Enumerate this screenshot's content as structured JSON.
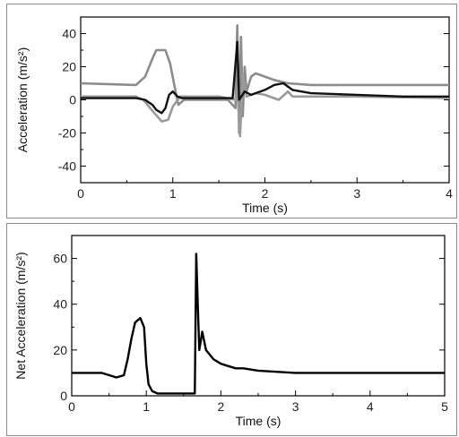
{
  "chart_data": [
    {
      "type": "line",
      "xlabel": "Time (s)",
      "ylabel": "Acceleration (m/s²)",
      "xlim": [
        0,
        4
      ],
      "ylim": [
        -50,
        50
      ],
      "x_ticks": [
        0,
        1,
        2,
        3,
        4
      ],
      "y_ticks": [
        40,
        20,
        0,
        -20,
        -40
      ],
      "grid": false,
      "series": [
        {
          "color": "#8c8c8c",
          "points": [
            [
              0,
              10
            ],
            [
              0.6,
              9
            ],
            [
              0.7,
              14
            ],
            [
              0.78,
              25
            ],
            [
              0.82,
              30
            ],
            [
              0.92,
              30
            ],
            [
              0.97,
              22
            ],
            [
              1.02,
              8
            ],
            [
              1.06,
              -3
            ],
            [
              1.12,
              0
            ],
            [
              1.3,
              0
            ],
            [
              1.6,
              0
            ],
            [
              1.68,
              -5
            ],
            [
              1.7,
              45
            ],
            [
              1.72,
              -20
            ],
            [
              1.74,
              38
            ],
            [
              1.76,
              -10
            ],
            [
              1.78,
              20
            ],
            [
              1.8,
              5
            ],
            [
              1.85,
              14
            ],
            [
              1.9,
              16
            ],
            [
              2.0,
              14
            ],
            [
              2.1,
              12
            ],
            [
              2.25,
              10
            ],
            [
              2.5,
              9
            ],
            [
              3.0,
              9
            ],
            [
              3.5,
              9
            ],
            [
              4.0,
              9
            ]
          ]
        },
        {
          "color": "#9a9a9a",
          "points": [
            [
              0,
              2
            ],
            [
              0.6,
              2
            ],
            [
              0.68,
              0
            ],
            [
              0.8,
              -8
            ],
            [
              0.88,
              -13
            ],
            [
              0.95,
              -12
            ],
            [
              1.0,
              -4
            ],
            [
              1.08,
              2
            ],
            [
              1.2,
              2
            ],
            [
              1.5,
              2
            ],
            [
              1.68,
              0
            ],
            [
              1.7,
              5
            ],
            [
              1.73,
              -22
            ],
            [
              1.76,
              15
            ],
            [
              1.8,
              2
            ],
            [
              1.9,
              4
            ],
            [
              2.0,
              3
            ],
            [
              2.15,
              0
            ],
            [
              2.25,
              5
            ],
            [
              2.3,
              2
            ],
            [
              2.6,
              2
            ],
            [
              3.0,
              2
            ],
            [
              4.0,
              1
            ]
          ]
        },
        {
          "color": "#111111",
          "points": [
            [
              0,
              1
            ],
            [
              0.6,
              1
            ],
            [
              0.7,
              0
            ],
            [
              0.78,
              -3
            ],
            [
              0.82,
              -6
            ],
            [
              0.88,
              -8
            ],
            [
              0.92,
              -5
            ],
            [
              0.96,
              3
            ],
            [
              1.0,
              5
            ],
            [
              1.05,
              2
            ],
            [
              1.1,
              1
            ],
            [
              1.4,
              1
            ],
            [
              1.65,
              1
            ],
            [
              1.7,
              35
            ],
            [
              1.72,
              0
            ],
            [
              1.78,
              5
            ],
            [
              1.85,
              3
            ],
            [
              2.0,
              6
            ],
            [
              2.1,
              9
            ],
            [
              2.2,
              10
            ],
            [
              2.3,
              6
            ],
            [
              2.5,
              4
            ],
            [
              3.0,
              3
            ],
            [
              3.5,
              2
            ],
            [
              4.0,
              2
            ]
          ]
        }
      ]
    },
    {
      "type": "line",
      "xlabel": "Time (s)",
      "ylabel": "Net Acceleration (m/s²)",
      "xlim": [
        0,
        5
      ],
      "ylim": [
        0,
        70
      ],
      "x_ticks": [
        0,
        1,
        2,
        3,
        4,
        5
      ],
      "y_ticks": [
        60,
        40,
        20,
        0
      ],
      "grid": false,
      "series": [
        {
          "color": "#000000",
          "points": [
            [
              0,
              10
            ],
            [
              0.4,
              10
            ],
            [
              0.6,
              8
            ],
            [
              0.7,
              9
            ],
            [
              0.75,
              16
            ],
            [
              0.8,
              25
            ],
            [
              0.85,
              32
            ],
            [
              0.92,
              34
            ],
            [
              0.97,
              30
            ],
            [
              1.0,
              14
            ],
            [
              1.03,
              5
            ],
            [
              1.08,
              2
            ],
            [
              1.15,
              1
            ],
            [
              1.3,
              1
            ],
            [
              1.5,
              1
            ],
            [
              1.65,
              1
            ],
            [
              1.67,
              62
            ],
            [
              1.69,
              40
            ],
            [
              1.71,
              20
            ],
            [
              1.75,
              28
            ],
            [
              1.8,
              20
            ],
            [
              1.9,
              16
            ],
            [
              2.0,
              14
            ],
            [
              2.1,
              13
            ],
            [
              2.2,
              12
            ],
            [
              2.3,
              12
            ],
            [
              2.5,
              11
            ],
            [
              3.0,
              10
            ],
            [
              3.5,
              10
            ],
            [
              4.0,
              10
            ],
            [
              4.5,
              10
            ],
            [
              5.0,
              10
            ]
          ]
        }
      ]
    }
  ]
}
